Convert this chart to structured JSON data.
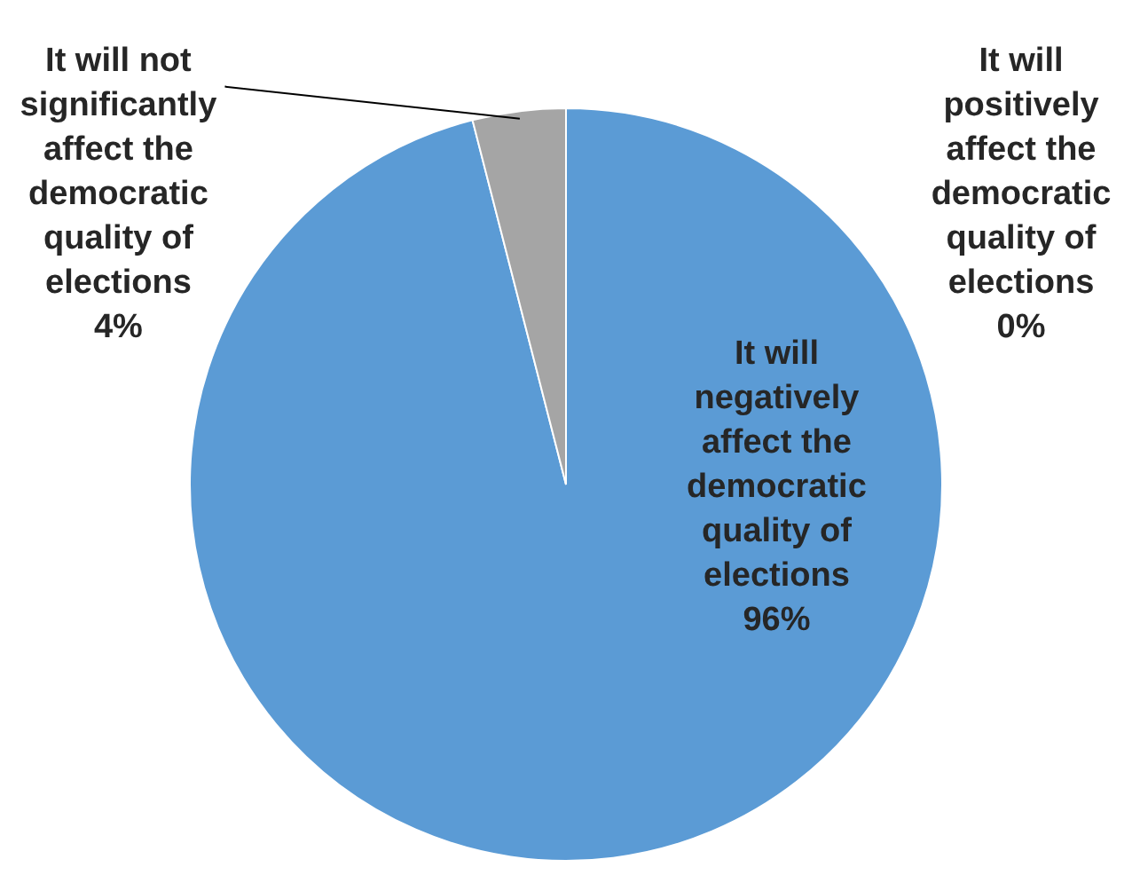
{
  "chart_data": {
    "type": "pie",
    "categories": [
      "It will positively affect the democratic quality of elections",
      "It will negatively affect the democratic quality of elections",
      "It will not significantly affect the democratic quality of elections"
    ],
    "values": [
      0,
      96,
      4
    ],
    "colors": [
      "#ed7d31",
      "#5b9bd5",
      "#a5a5a5"
    ],
    "value_labels": [
      "0%",
      "96%",
      "4%"
    ],
    "legend": false
  }
}
